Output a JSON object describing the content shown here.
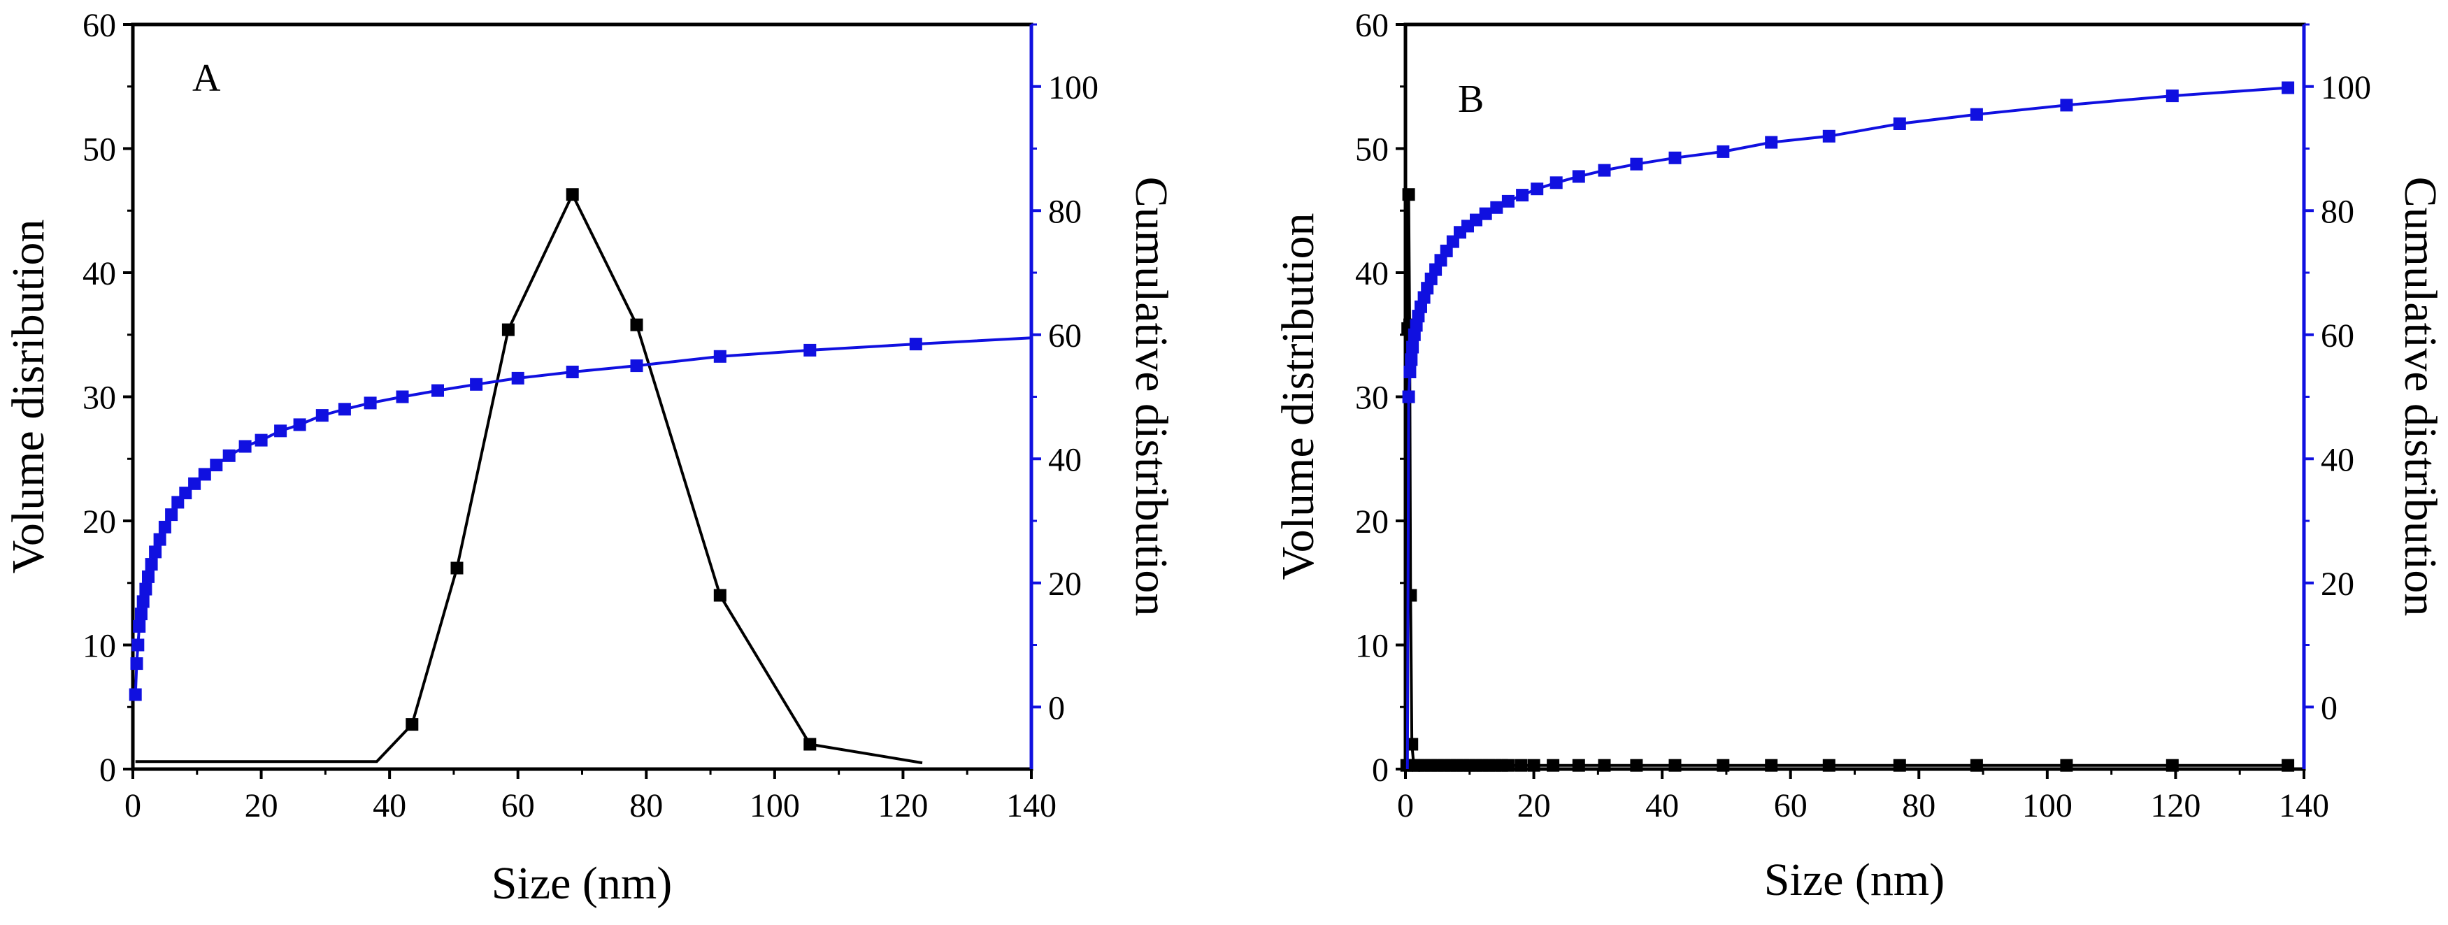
{
  "chart_data": [
    {
      "type": "line",
      "panel_label": "A",
      "xlabel": "Size (nm)",
      "ylabel": "Volume disribution",
      "y2label": "Cumulative distribution",
      "xlim": [
        0,
        140
      ],
      "ylim": [
        0,
        60
      ],
      "y2lim": [
        -10,
        110
      ],
      "xticks": [
        "0",
        "20",
        "40",
        "60",
        "80",
        "100",
        "120",
        "140"
      ],
      "yticks": [
        "0",
        "10",
        "20",
        "30",
        "40",
        "50",
        "60"
      ],
      "y2ticks": [
        "0",
        "20",
        "40",
        "60",
        "80",
        "100"
      ],
      "series": [
        {
          "name": "Volume distribution",
          "axis": "left",
          "color": "#000000",
          "x": [
            0.4,
            0.8,
            1.2,
            1.6,
            2.0,
            2.5,
            3.0,
            4.0,
            5.0,
            6.0,
            7.0,
            8.0,
            10,
            12,
            14,
            17,
            20,
            23,
            26,
            30,
            34,
            38,
            43.5,
            50.5,
            58.5,
            68.5,
            78.5,
            91.5,
            105.5,
            123
          ],
          "y": [
            0.6,
            0.6,
            0.6,
            0.6,
            0.6,
            0.6,
            0.6,
            0.6,
            0.6,
            0.6,
            0.6,
            0.6,
            0.6,
            0.6,
            0.6,
            0.6,
            0.6,
            0.6,
            0.6,
            0.6,
            0.6,
            0.6,
            3.6,
            16.2,
            35.4,
            46.3,
            35.8,
            14.0,
            2.0,
            0.5
          ],
          "markers": [
            0,
            0,
            0,
            0,
            0,
            0,
            0,
            0,
            0,
            0,
            0,
            0,
            0,
            0,
            0,
            0,
            0,
            0,
            0,
            0,
            0,
            0,
            1,
            1,
            1,
            1,
            1,
            1,
            1,
            0
          ]
        },
        {
          "name": "Cumulative distribution",
          "axis": "right",
          "color": "#1010e0",
          "x": [
            0.4,
            0.6,
            0.8,
            1.0,
            1.3,
            1.6,
            2.0,
            2.4,
            2.9,
            3.5,
            4.2,
            5.0,
            6.0,
            7.0,
            8.2,
            9.6,
            11.2,
            13.0,
            15.0,
            17.5,
            20.0,
            23.0,
            26.0,
            29.5,
            33.0,
            37.0,
            42.0,
            47.5,
            53.5,
            60.0,
            68.5,
            78.5,
            91.5,
            105.5,
            122.0,
            140.0
          ],
          "y": [
            2,
            7,
            10,
            13,
            15,
            17,
            19,
            21,
            23,
            25,
            27,
            29,
            31,
            33,
            34.5,
            36,
            37.5,
            39,
            40.5,
            42,
            43,
            44.5,
            45.5,
            47,
            48,
            49,
            50,
            51,
            52,
            53,
            54,
            55,
            56.5,
            57.5,
            58.5,
            59.5
          ],
          "markers": [
            1,
            1,
            1,
            1,
            1,
            1,
            1,
            1,
            1,
            1,
            1,
            1,
            1,
            1,
            1,
            1,
            1,
            1,
            1,
            1,
            1,
            1,
            1,
            1,
            1,
            1,
            1,
            1,
            1,
            1,
            1,
            1,
            1,
            1,
            1,
            0
          ]
        }
      ]
    },
    {
      "type": "line",
      "panel_label": "B",
      "xlabel": "Size (nm)",
      "ylabel": "Volume distribution",
      "y2label": "Cumulative distribution",
      "xlim": [
        0,
        140
      ],
      "ylim": [
        0,
        60
      ],
      "y2lim": [
        -10,
        110
      ],
      "xticks": [
        "0",
        "20",
        "40",
        "60",
        "80",
        "100",
        "120",
        "140"
      ],
      "yticks": [
        "0",
        "10",
        "20",
        "30",
        "40",
        "50",
        "60"
      ],
      "y2ticks": [
        "0",
        "20",
        "40",
        "60",
        "80",
        "100"
      ],
      "series": [
        {
          "name": "Volume distribution",
          "axis": "left",
          "color": "#000000",
          "x": [
            0.2,
            0.35,
            0.5,
            0.65,
            0.8,
            1.0,
            1.3,
            2.0,
            3,
            4,
            5,
            6,
            7,
            8,
            9,
            10,
            11,
            12,
            13,
            14,
            15,
            16,
            18,
            20,
            23,
            27,
            31,
            36,
            42,
            49.5,
            57,
            66,
            77,
            89,
            103,
            119.5,
            137.5
          ],
          "y": [
            0.3,
            35.5,
            46.3,
            35.8,
            14.0,
            2.0,
            0.3,
            0.3,
            0.3,
            0.3,
            0.3,
            0.3,
            0.3,
            0.3,
            0.3,
            0.3,
            0.3,
            0.3,
            0.3,
            0.3,
            0.3,
            0.3,
            0.3,
            0.3,
            0.3,
            0.3,
            0.3,
            0.3,
            0.3,
            0.3,
            0.3,
            0.3,
            0.3,
            0.3,
            0.3,
            0.3,
            0.3
          ],
          "markers": [
            1,
            1,
            1,
            1,
            1,
            1,
            1,
            1,
            1,
            1,
            1,
            1,
            1,
            1,
            1,
            1,
            1,
            1,
            1,
            1,
            1,
            1,
            1,
            1,
            1,
            1,
            1,
            1,
            1,
            1,
            1,
            1,
            1,
            1,
            1,
            1,
            1
          ]
        },
        {
          "name": "Cumulative distribution",
          "axis": "right",
          "color": "#1010e0",
          "x": [
            0.3,
            0.5,
            0.7,
            0.9,
            1.1,
            1.4,
            1.7,
            2.0,
            2.4,
            2.9,
            3.4,
            4.0,
            4.7,
            5.5,
            6.4,
            7.4,
            8.5,
            9.7,
            11.0,
            12.5,
            14.2,
            16.0,
            18.2,
            20.5,
            23.5,
            27.0,
            31.0,
            36.0,
            42.0,
            49.5,
            57.0,
            66.0,
            77.0,
            89.0,
            103.0,
            119.5,
            137.5
          ],
          "y": [
            -10,
            50,
            54,
            56,
            58,
            60,
            61.5,
            63,
            64.5,
            66,
            67.5,
            69,
            70.5,
            72,
            73.5,
            75,
            76.5,
            77.5,
            78.5,
            79.5,
            80.5,
            81.5,
            82.5,
            83.5,
            84.5,
            85.5,
            86.5,
            87.5,
            88.5,
            89.5,
            91,
            92,
            94,
            95.5,
            97,
            98.5,
            99.8
          ],
          "markers": [
            0,
            1,
            1,
            1,
            1,
            1,
            1,
            1,
            1,
            1,
            1,
            1,
            1,
            1,
            1,
            1,
            1,
            1,
            1,
            1,
            1,
            1,
            1,
            1,
            1,
            1,
            1,
            1,
            1,
            1,
            1,
            1,
            1,
            1,
            1,
            1,
            1
          ]
        }
      ]
    }
  ]
}
